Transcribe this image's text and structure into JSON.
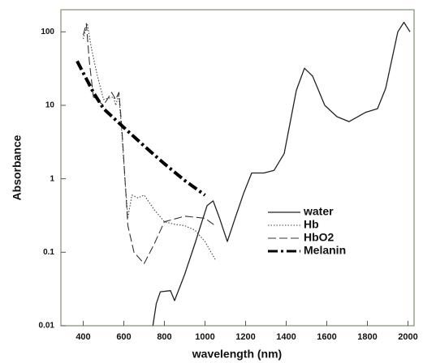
{
  "chart_data": {
    "type": "line",
    "y_label": "Absorbance",
    "x_label": "wavelength (nm)",
    "xlim": [
      290,
      2030
    ],
    "xticks": [
      400,
      600,
      800,
      1000,
      1200,
      1400,
      1600,
      1800,
      2000
    ],
    "ylim": [
      0.01,
      200
    ],
    "yticks": [
      100,
      10,
      1,
      0.1,
      0.01
    ],
    "y_scale": "log",
    "grid": false,
    "legend": "center right",
    "series": [
      {
        "name": "water",
        "color": "#222222",
        "line_style": "solid",
        "width": 1.3,
        "x": [
          743,
          760,
          780,
          830,
          850,
          900,
          950,
          1010,
          1040,
          1070,
          1110,
          1150,
          1190,
          1230,
          1290,
          1340,
          1390,
          1450,
          1490,
          1530,
          1590,
          1650,
          1710,
          1790,
          1850,
          1890,
          1950,
          1980,
          2010
        ],
        "values": [
          0.01,
          0.02,
          0.029,
          0.03,
          0.022,
          0.05,
          0.13,
          0.43,
          0.5,
          0.3,
          0.14,
          0.3,
          0.63,
          1.2,
          1.2,
          1.3,
          2.2,
          16,
          32,
          25,
          10,
          7,
          6,
          8,
          9,
          17,
          100,
          135,
          100
        ]
      },
      {
        "name": "Hb",
        "color": "#444444",
        "line_style": "dotted",
        "width": 1.1,
        "x": [
          400,
          420,
          440,
          470,
          500,
          550,
          560,
          575,
          592,
          605,
          620,
          640,
          670,
          700,
          750,
          800,
          850,
          900,
          950,
          1000,
          1050
        ],
        "values": [
          80,
          130,
          60,
          25,
          12,
          13,
          10,
          14,
          3.6,
          1,
          0.3,
          0.6,
          0.55,
          0.6,
          0.38,
          0.26,
          0.24,
          0.23,
          0.2,
          0.14,
          0.08
        ]
      },
      {
        "name": "HbO2",
        "color": "#333333",
        "line_style": "dashed",
        "width": 1.1,
        "x": [
          400,
          415,
          430,
          450,
          500,
          540,
          560,
          576,
          590,
          600,
          620,
          650,
          700,
          750,
          800,
          900,
          1000,
          1050
        ],
        "values": [
          90,
          130,
          40,
          13,
          10,
          15,
          12,
          15,
          5,
          1.8,
          0.23,
          0.1,
          0.07,
          0.13,
          0.26,
          0.31,
          0.29,
          0.23
        ]
      },
      {
        "name": "Melanin",
        "color": "#000000",
        "line_style": "dash-dot",
        "width": 4,
        "x": [
          370,
          450,
          500,
          600,
          700,
          800,
          900,
          1000
        ],
        "values": [
          40,
          15,
          9,
          5,
          2.8,
          1.6,
          0.95,
          0.6
        ]
      }
    ]
  }
}
